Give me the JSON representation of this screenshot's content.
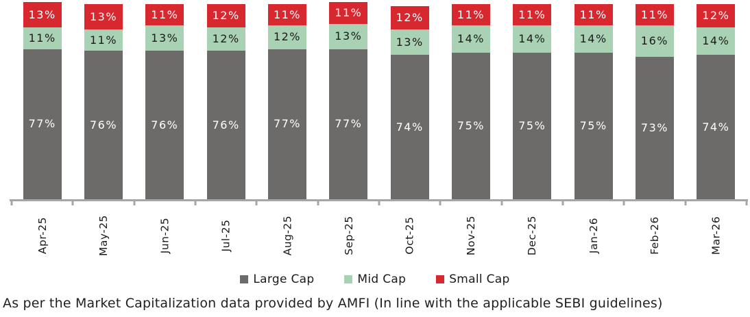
{
  "chart_data": {
    "type": "bar",
    "stacked": true,
    "title": "",
    "xlabel": "",
    "ylabel": "",
    "value_suffix": "%",
    "legend_position": "bottom",
    "grid": false,
    "axis_color": "#a6a6a6",
    "categories": [
      "Apr-25",
      "May-25",
      "Jun-25",
      "Jul-25",
      "Aug-25",
      "Sep-25",
      "Oct-25",
      "Nov-25",
      "Dec-25",
      "Jan-26",
      "Feb-26",
      "Mar-26"
    ],
    "series": [
      {
        "name": "Large Cap",
        "color": "#6d6a6a",
        "label_color": "#ffffff",
        "values": [
          77,
          76,
          76,
          76,
          77,
          77,
          74,
          75,
          75,
          75,
          73,
          74
        ]
      },
      {
        "name": "Mid Cap",
        "color": "#a9d2b4",
        "label_color": "#1a1a1a",
        "values": [
          11,
          11,
          13,
          12,
          12,
          13,
          13,
          14,
          14,
          14,
          16,
          14
        ]
      },
      {
        "name": "Small Cap",
        "color": "#d7282f",
        "label_color": "#ffffff",
        "values": [
          13,
          13,
          11,
          12,
          11,
          11,
          12,
          11,
          11,
          11,
          11,
          12
        ]
      }
    ]
  },
  "footer": {
    "note": "As per the Market Capitalization data provided by AMFI (In line with the applicable SEBI guidelines)"
  }
}
